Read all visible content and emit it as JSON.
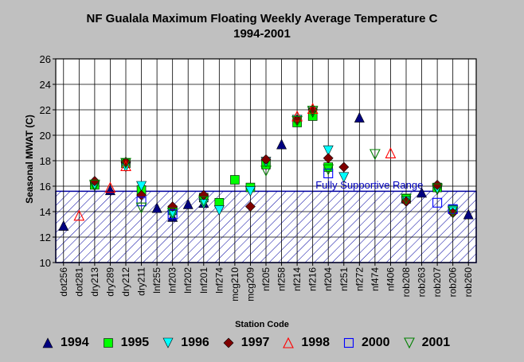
{
  "chart_data": {
    "type": "scatter",
    "title_line1": "NF Gualala Maximum Floating Weekly Average Temperature C",
    "title_line2": "1994-2001",
    "xlabel": "Station Code",
    "ylabel": "Seasonal MWAT  (C)",
    "ylim": [
      10,
      26
    ],
    "yticks": [
      "10",
      "12",
      "14",
      "16",
      "18",
      "20",
      "22",
      "24",
      "26"
    ],
    "grid": "vertical and horizontal",
    "legend_position": "bottom",
    "categories": [
      "dot256",
      "dot281",
      "dry213",
      "dry289",
      "dry212",
      "dry211",
      "lnf255",
      "lnf203",
      "lnf202",
      "lnf201",
      "lnf274",
      "mcg210",
      "mcg209",
      "nf205",
      "nf258",
      "nf214",
      "nf216",
      "nf204",
      "nf251",
      "nf272",
      "nf474",
      "nf406",
      "rob208",
      "rob263",
      "rob207",
      "rob206",
      "rob260"
    ],
    "band": {
      "label": "Fully Supportive Range",
      "ymin": 10,
      "ymax": 15.6
    },
    "series": [
      {
        "name": "1994",
        "marker": "triangle-up",
        "color": "#000080",
        "fill": true,
        "points": [
          [
            0,
            12.9
          ],
          [
            3,
            15.7
          ],
          [
            6,
            14.3
          ],
          [
            7,
            13.6
          ],
          [
            8,
            14.6
          ],
          [
            9,
            14.7
          ],
          [
            14,
            19.3
          ],
          [
            19,
            21.4
          ],
          [
            23,
            15.5
          ],
          [
            26,
            13.8
          ]
        ]
      },
      {
        "name": "1995",
        "marker": "square",
        "color": "#00ff00",
        "fill": true,
        "points": [
          [
            2,
            16.1
          ],
          [
            4,
            17.8
          ],
          [
            5,
            15.7
          ],
          [
            7,
            14.1
          ],
          [
            9,
            15.1
          ],
          [
            10,
            14.7
          ],
          [
            11,
            16.5
          ],
          [
            12,
            15.9
          ],
          [
            13,
            17.7
          ],
          [
            15,
            21.0
          ],
          [
            16,
            21.5
          ],
          [
            17,
            17.5
          ],
          [
            22,
            15.0
          ],
          [
            24,
            15.9
          ],
          [
            25,
            14.2
          ]
        ]
      },
      {
        "name": "1996",
        "marker": "triangle-down",
        "color": "#00ffff",
        "fill": true,
        "points": [
          [
            2,
            16.0
          ],
          [
            4,
            17.5
          ],
          [
            5,
            16.0
          ],
          [
            7,
            13.7
          ],
          [
            9,
            14.6
          ],
          [
            10,
            14.1
          ],
          [
            12,
            15.6
          ],
          [
            13,
            17.9
          ],
          [
            15,
            21.2
          ],
          [
            16,
            21.8
          ],
          [
            17,
            18.8
          ],
          [
            18,
            16.7
          ],
          [
            22,
            14.8
          ],
          [
            24,
            15.7
          ],
          [
            25,
            14.1
          ]
        ]
      },
      {
        "name": "1997",
        "marker": "diamond",
        "color": "#800000",
        "fill": true,
        "points": [
          [
            2,
            16.4
          ],
          [
            4,
            17.9
          ],
          [
            5,
            15.3
          ],
          [
            7,
            14.4
          ],
          [
            9,
            15.3
          ],
          [
            12,
            14.4
          ],
          [
            13,
            18.1
          ],
          [
            15,
            21.2
          ],
          [
            16,
            22.0
          ],
          [
            17,
            18.2
          ],
          [
            18,
            17.5
          ],
          [
            22,
            14.8
          ],
          [
            24,
            16.1
          ],
          [
            25,
            13.9
          ]
        ]
      },
      {
        "name": "1998",
        "marker": "triangle-up",
        "color": "#ff0000",
        "fill": false,
        "points": [
          [
            1,
            13.7
          ],
          [
            3,
            15.9
          ],
          [
            4,
            17.6
          ],
          [
            15,
            21.5
          ],
          [
            16,
            22.1
          ],
          [
            21,
            18.6
          ]
        ]
      },
      {
        "name": "2000",
        "marker": "square",
        "color": "#0000ff",
        "fill": false,
        "points": [
          [
            5,
            14.8
          ],
          [
            7,
            13.8
          ],
          [
            17,
            17.0
          ],
          [
            24,
            14.7
          ],
          [
            25,
            14.2
          ]
        ]
      },
      {
        "name": "2001",
        "marker": "triangle-down",
        "color": "#008000",
        "fill": false,
        "points": [
          [
            2,
            16.1
          ],
          [
            4,
            17.8
          ],
          [
            5,
            14.3
          ],
          [
            7,
            13.9
          ],
          [
            9,
            14.8
          ],
          [
            13,
            17.2
          ],
          [
            15,
            21.1
          ],
          [
            16,
            21.9
          ],
          [
            17,
            17.3
          ],
          [
            20,
            18.5
          ],
          [
            22,
            15.0
          ],
          [
            24,
            15.8
          ],
          [
            25,
            14.0
          ]
        ]
      }
    ]
  }
}
